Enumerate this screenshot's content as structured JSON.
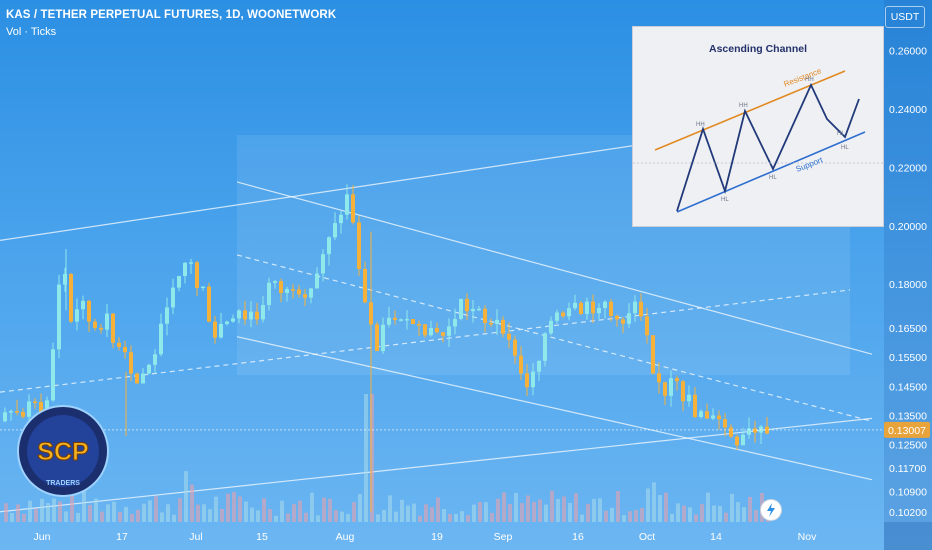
{
  "header": {
    "title": "KAS / TETHER PERPETUAL FUTURES, 1D, WOONETWORK",
    "indicator": "Vol · Ticks",
    "currency": "USDT"
  },
  "price_badge": "0.13007",
  "colors": {
    "up": "#8fe9ea",
    "down": "#f6b13a",
    "accent": "#e9a33b",
    "bg_top": "#2b8fe3",
    "bg_bottom": "#6cb6f2"
  },
  "chart_data": {
    "type": "candlestick",
    "title": "KAS / TETHER PERPETUAL FUTURES, 1D, WOONETWORK",
    "ylabel": "USDT",
    "ylim": [
      0.0985,
      0.2705
    ],
    "y_ticks": [
      "0.26000",
      "0.24000",
      "0.22000",
      "0.20000",
      "0.18000",
      "0.16500",
      "0.15500",
      "0.14500",
      "0.13500",
      "0.12500",
      "0.11700",
      "0.10900",
      "0.10200"
    ],
    "x_ticks": [
      "Jun",
      "17",
      "Jul",
      "15",
      "Aug",
      "19",
      "Sep",
      "16",
      "Oct",
      "14",
      "Nov"
    ],
    "last_price": 0.13007,
    "close_path": [
      [
        0,
        0.133
      ],
      [
        8,
        0.138
      ],
      [
        14,
        0.136
      ],
      [
        22,
        0.135
      ],
      [
        30,
        0.14
      ],
      [
        40,
        0.136
      ],
      [
        48,
        0.142
      ],
      [
        55,
        0.178
      ],
      [
        62,
        0.186
      ],
      [
        70,
        0.165
      ],
      [
        78,
        0.176
      ],
      [
        85,
        0.168
      ],
      [
        95,
        0.165
      ],
      [
        105,
        0.168
      ],
      [
        113,
        0.157
      ],
      [
        120,
        0.162
      ],
      [
        127,
        0.152
      ],
      [
        135,
        0.146
      ],
      [
        142,
        0.15
      ],
      [
        150,
        0.153
      ],
      [
        158,
        0.163
      ],
      [
        165,
        0.174
      ],
      [
        172,
        0.178
      ],
      [
        180,
        0.183
      ],
      [
        187,
        0.192
      ],
      [
        194,
        0.178
      ],
      [
        200,
        0.18
      ],
      [
        206,
        0.17
      ],
      [
        212,
        0.162
      ],
      [
        218,
        0.166
      ],
      [
        226,
        0.168
      ],
      [
        232,
        0.17
      ],
      [
        238,
        0.172
      ],
      [
        244,
        0.168
      ],
      [
        250,
        0.171
      ],
      [
        256,
        0.168
      ],
      [
        262,
        0.175
      ],
      [
        268,
        0.181
      ],
      [
        275,
        0.179
      ],
      [
        282,
        0.176
      ],
      [
        290,
        0.18
      ],
      [
        298,
        0.178
      ],
      [
        306,
        0.177
      ],
      [
        314,
        0.183
      ],
      [
        322,
        0.19
      ],
      [
        330,
        0.198
      ],
      [
        337,
        0.202
      ],
      [
        344,
        0.211
      ],
      [
        350,
        0.205
      ],
      [
        355,
        0.188
      ],
      [
        360,
        0.178
      ],
      [
        365,
        0.172
      ],
      [
        370,
        0.165
      ],
      [
        375,
        0.157
      ],
      [
        380,
        0.163
      ],
      [
        386,
        0.17
      ],
      [
        392,
        0.167
      ],
      [
        398,
        0.166
      ],
      [
        405,
        0.17
      ],
      [
        412,
        0.165
      ],
      [
        418,
        0.168
      ],
      [
        425,
        0.163
      ],
      [
        432,
        0.166
      ],
      [
        440,
        0.162
      ],
      [
        446,
        0.164
      ],
      [
        452,
        0.168
      ],
      [
        460,
        0.175
      ],
      [
        467,
        0.17
      ],
      [
        474,
        0.172
      ],
      [
        480,
        0.168
      ],
      [
        486,
        0.164
      ],
      [
        492,
        0.17
      ],
      [
        500,
        0.166
      ],
      [
        506,
        0.16
      ],
      [
        512,
        0.158
      ],
      [
        518,
        0.15
      ],
      [
        524,
        0.145
      ],
      [
        530,
        0.148
      ],
      [
        536,
        0.152
      ],
      [
        542,
        0.16
      ],
      [
        548,
        0.167
      ],
      [
        554,
        0.171
      ],
      [
        560,
        0.17
      ],
      [
        566,
        0.172
      ],
      [
        572,
        0.176
      ],
      [
        578,
        0.171
      ],
      [
        584,
        0.174
      ],
      [
        590,
        0.172
      ],
      [
        597,
        0.17
      ],
      [
        604,
        0.174
      ],
      [
        610,
        0.168
      ],
      [
        616,
        0.17
      ],
      [
        622,
        0.165
      ],
      [
        628,
        0.17
      ],
      [
        634,
        0.174
      ],
      [
        640,
        0.166
      ],
      [
        646,
        0.16
      ],
      [
        652,
        0.145
      ],
      [
        658,
        0.146
      ],
      [
        664,
        0.142
      ],
      [
        670,
        0.15
      ],
      [
        676,
        0.148
      ],
      [
        682,
        0.14
      ],
      [
        688,
        0.141
      ],
      [
        694,
        0.133
      ],
      [
        700,
        0.136
      ],
      [
        706,
        0.132
      ],
      [
        712,
        0.137
      ],
      [
        718,
        0.134
      ],
      [
        724,
        0.13
      ],
      [
        730,
        0.128
      ],
      [
        736,
        0.126
      ],
      [
        742,
        0.13
      ],
      [
        748,
        0.132
      ],
      [
        754,
        0.129
      ],
      [
        760,
        0.133
      ],
      [
        766,
        0.13
      ]
    ],
    "overlays": [
      {
        "name": "descending-channel-upper",
        "from": [
          237,
          0.215
        ],
        "to": [
          872,
          0.156
        ]
      },
      {
        "name": "descending-channel-lower",
        "from": [
          237,
          0.162
        ],
        "to": [
          872,
          0.113
        ]
      },
      {
        "name": "channel-midline",
        "from": [
          237,
          0.19
        ],
        "to": [
          872,
          0.133
        ]
      },
      {
        "name": "rising-trend-upper",
        "from": [
          0,
          0.195
        ],
        "to": [
          644,
          0.228
        ]
      },
      {
        "name": "rising-trend-lower",
        "from": [
          0,
          0.102
        ],
        "to": [
          872,
          0.134
        ]
      },
      {
        "name": "rising-trend-mid",
        "from": [
          0,
          0.143
        ],
        "to": [
          850,
          0.178
        ]
      }
    ]
  },
  "inset": {
    "title": "Ascending Channel",
    "resistance_label": "Resistance",
    "support_label": "Support",
    "markers": [
      "HH",
      "HH",
      "HH",
      "HL",
      "HL",
      "HL",
      "HL"
    ]
  },
  "logo": {
    "main": "SCP",
    "sub": "TRADERS"
  }
}
